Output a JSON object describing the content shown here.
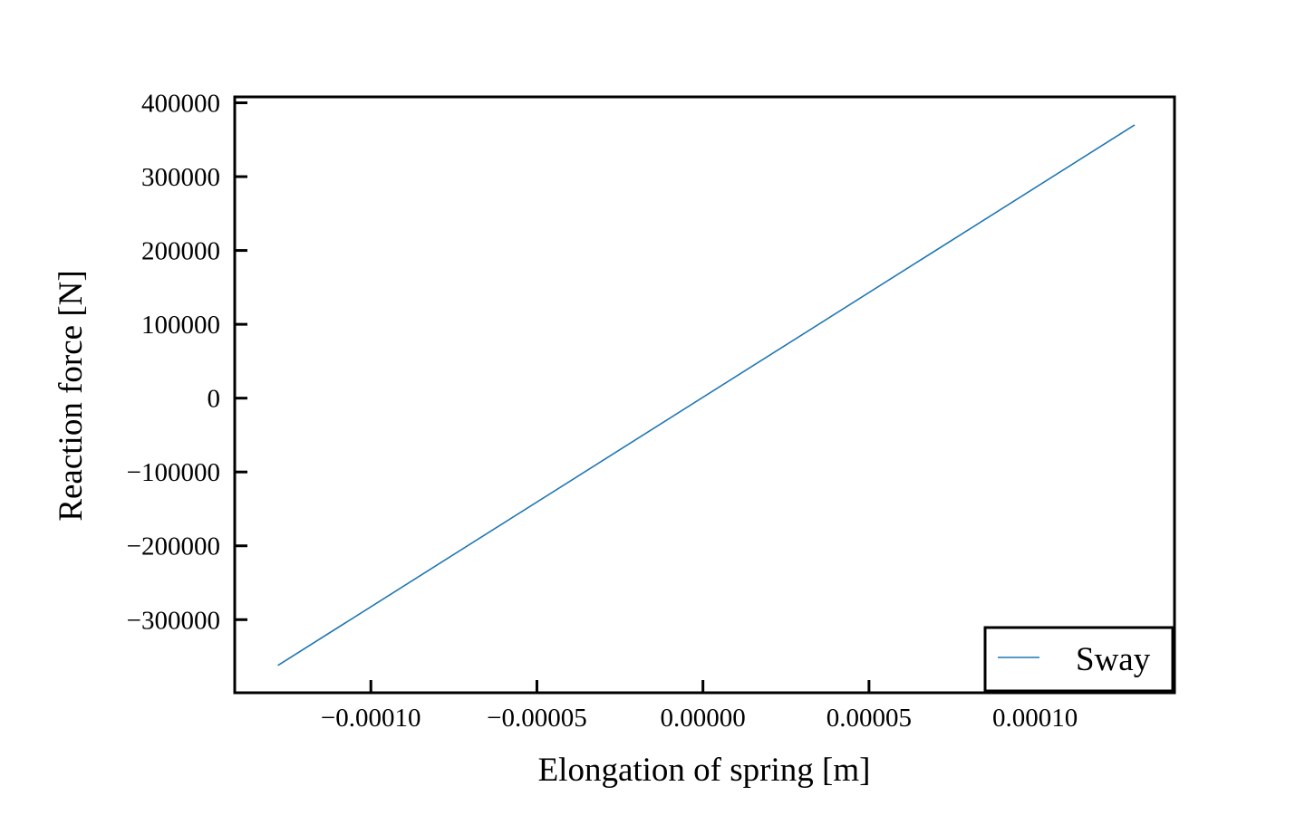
{
  "chart_data": {
    "type": "line",
    "title": "",
    "xlabel": "Elongation of spring [m]",
    "ylabel": "Reaction force [N]",
    "xlim": [
      -0.000141,
      0.000142
    ],
    "ylim": [
      -399000,
      408000
    ],
    "xticks": [
      -0.0001,
      -5e-05,
      0.0,
      5e-05,
      0.0001
    ],
    "xtick_labels": [
      "−0.00010",
      "−0.00005",
      "0.00000",
      "0.00005",
      "0.00010"
    ],
    "yticks": [
      -300000,
      -200000,
      -100000,
      0,
      100000,
      200000,
      300000,
      400000
    ],
    "ytick_labels": [
      "−300000",
      "−200000",
      "−100000",
      "0",
      "100000",
      "200000",
      "300000",
      "400000"
    ],
    "grid": false,
    "legend_position": "lower-right",
    "series": [
      {
        "name": "Sway",
        "color": "#1f77b4",
        "x": [
          -0.000128,
          0.00013
        ],
        "y": [
          -362000,
          370000
        ]
      }
    ]
  }
}
